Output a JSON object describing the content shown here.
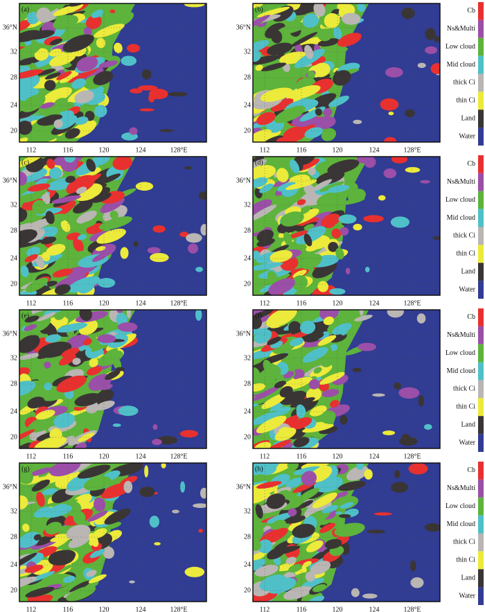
{
  "panels": [
    {
      "label": "(a)"
    },
    {
      "label": "(b)"
    },
    {
      "label": "(c)"
    },
    {
      "label": "(d)"
    },
    {
      "label": "(e)"
    },
    {
      "label": "(f)"
    },
    {
      "label": "(g)"
    },
    {
      "label": "(h)"
    }
  ],
  "lat_labels": [
    "36°N",
    "32",
    "28",
    "24",
    "20"
  ],
  "lon_labels": [
    "112",
    "116",
    "120",
    "124",
    "128°E"
  ],
  "legend": [
    {
      "label": "Cb",
      "color": "#e8312f"
    },
    {
      "label": "Ns&Multi",
      "color": "#9b4fa8"
    },
    {
      "label": "Low cloud",
      "color": "#5db33b"
    },
    {
      "label": "Mid cloud",
      "color": "#4fc0c8"
    },
    {
      "label": "thick Ci",
      "color": "#b9b6b4"
    },
    {
      "label": "thin Ci",
      "color": "#ecea3a"
    },
    {
      "label": "Land",
      "color": "#3a3535"
    },
    {
      "label": "Water",
      "color": "#313c93"
    }
  ]
}
